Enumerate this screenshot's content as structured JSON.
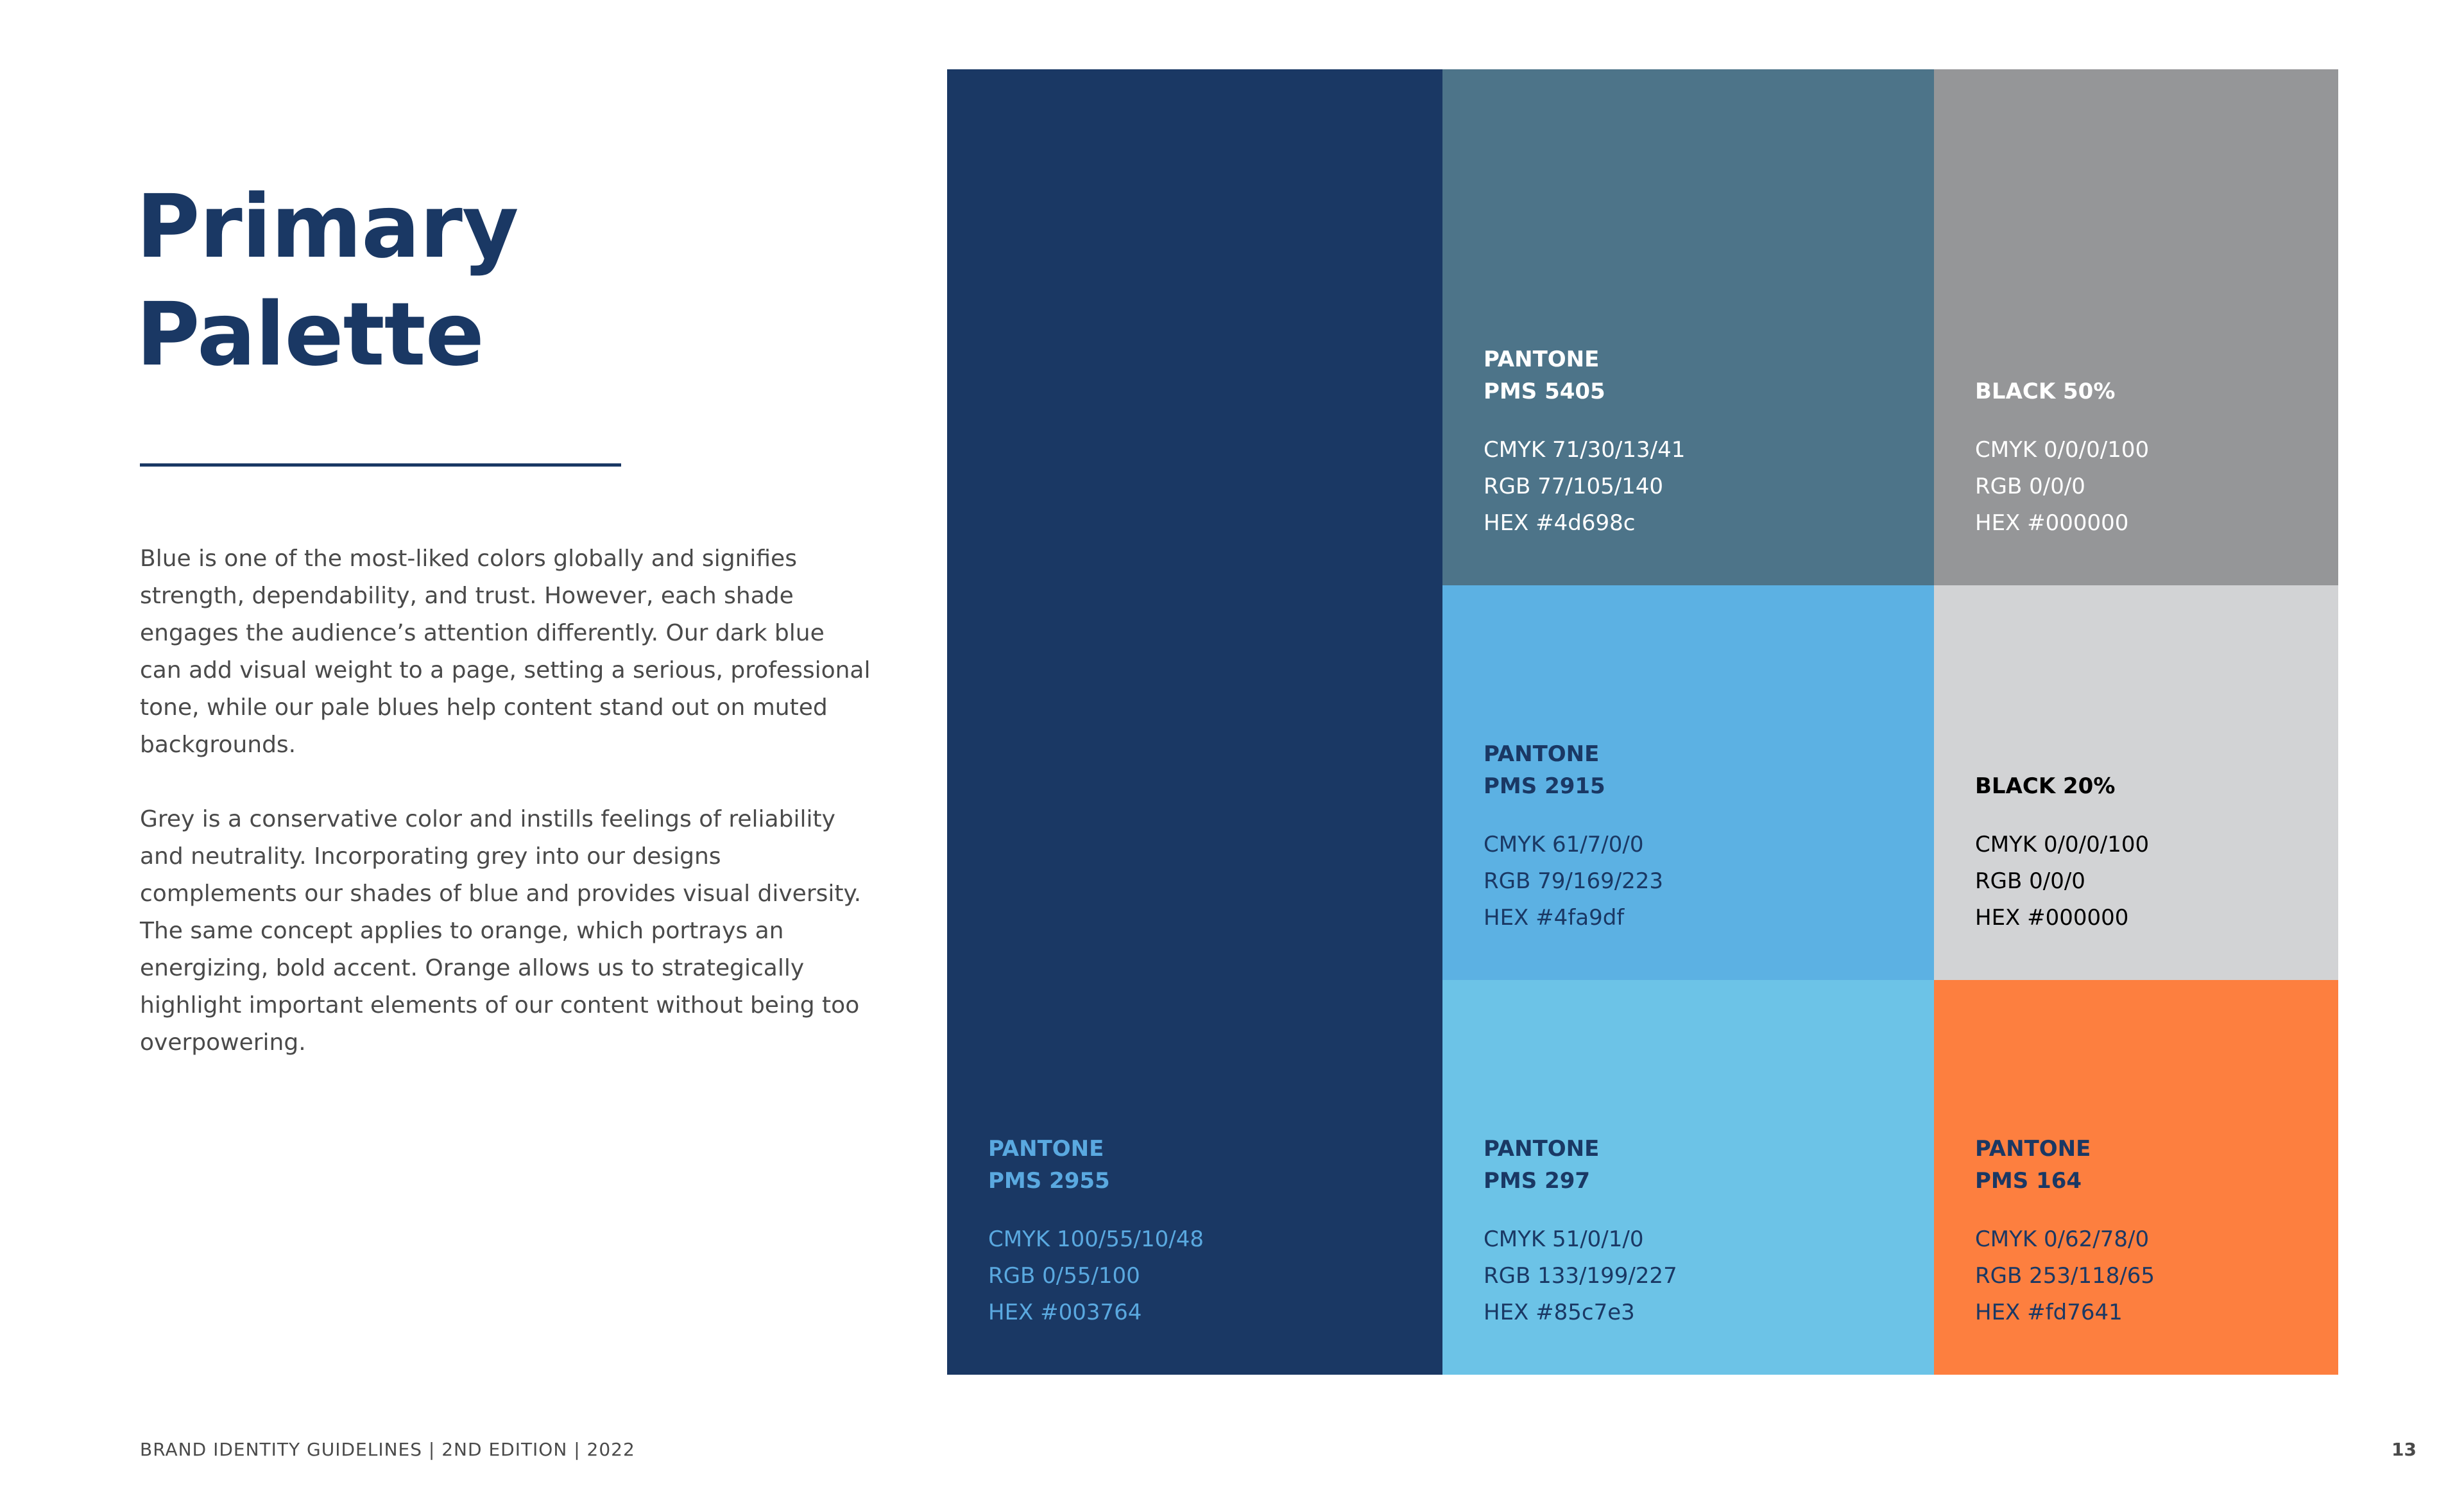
{
  "title": {
    "line1": "Primary",
    "line2": "Palette"
  },
  "body": {
    "p1": "Blue is one of the most-liked colors globally and signifies strength, dependability, and trust. However, each shade engages the audience’s attention differently. Our dark blue can add visual weight to a page, setting a serious, professional tone, while our pale blues help content stand out on muted backgrounds.",
    "p2": "Grey is a conservative color and instills feelings of reliability and neutrality. Incorporating grey into our designs complements our shades of blue and provides visual diversity. The same concept applies to orange, which portrays an energizing, bold accent. Orange allows us to strategically highlight important elements of our content without being too overpowering."
  },
  "swatches": {
    "pms2955": {
      "bg": "#1a3864",
      "text_color": "#5aa9e0",
      "name1": "PANTONE",
      "name2": "PMS 2955",
      "cmyk": "CMYK 100/55/10/48",
      "rgb": "RGB 0/55/100",
      "hex": "HEX #003764"
    },
    "pms5405": {
      "bg": "#4d7489",
      "text_color": "#ffffff",
      "name1": "PANTONE",
      "name2": "PMS 5405",
      "cmyk": "CMYK 71/30/13/41",
      "rgb": "RGB 77/105/140",
      "hex": "HEX #4d698c"
    },
    "black50": {
      "bg": "#959698",
      "text_color": "#ffffff",
      "name1": "",
      "name2": "BLACK 50%",
      "cmyk": "CMYK 0/0/0/100",
      "rgb": "RGB 0/0/0",
      "hex": "HEX #000000"
    },
    "pms2915": {
      "bg": "#5cb1e3",
      "text_color": "#1a3864",
      "name1": "PANTONE",
      "name2": "PMS 2915",
      "cmyk": "CMYK 61/7/0/0",
      "rgb": "RGB 79/169/223",
      "hex": "HEX #4fa9df"
    },
    "black20": {
      "bg": "#d2d3d5",
      "text_color": "#000000",
      "name1": "",
      "name2": "BLACK 20%",
      "cmyk": "CMYK 0/0/0/100",
      "rgb": "RGB 0/0/0",
      "hex": "HEX #000000"
    },
    "pms297": {
      "bg": "#6cc3e7",
      "text_color": "#1a3864",
      "name1": "PANTONE",
      "name2": "PMS 297",
      "cmyk": "CMYK 51/0/1/0",
      "rgb": "RGB 133/199/227",
      "hex": "HEX #85c7e3"
    },
    "pms164": {
      "bg": "#fd7f3f",
      "text_color": "#1a3864",
      "name1": "PANTONE",
      "name2": "PMS 164",
      "cmyk": "CMYK 0/62/78/0",
      "rgb": "RGB 253/118/65",
      "hex": "HEX #fd7641"
    }
  },
  "footer": {
    "left": "BRAND IDENTITY GUIDELINES | 2ND EDITION | 2022",
    "page": "13"
  }
}
